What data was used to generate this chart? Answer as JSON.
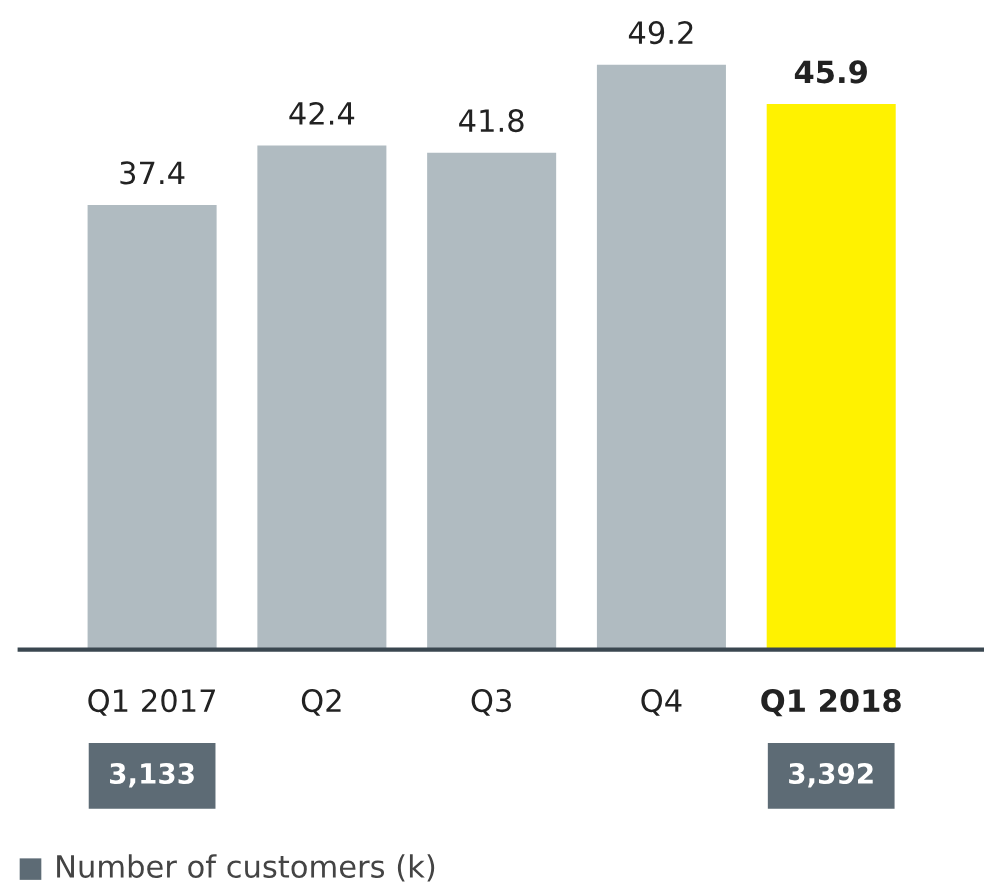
{
  "chart_data": {
    "type": "bar",
    "categories": [
      "Q1 2017",
      "Q2",
      "Q3",
      "Q4",
      "Q1 2018"
    ],
    "series": [
      {
        "color": "#b0bbc1",
        "colors": [
          "#b0bbc1",
          "#b0bbc1",
          "#b0bbc1",
          "#b0bbc1",
          "#fff200"
        ],
        "values": [
          37.4,
          42.4,
          41.8,
          49.2,
          45.9
        ]
      }
    ],
    "annotations": [
      "3,133",
      "3,392",
      "Number of customers (k)"
    ],
    "data_labels": true,
    "grid": false
  }
}
